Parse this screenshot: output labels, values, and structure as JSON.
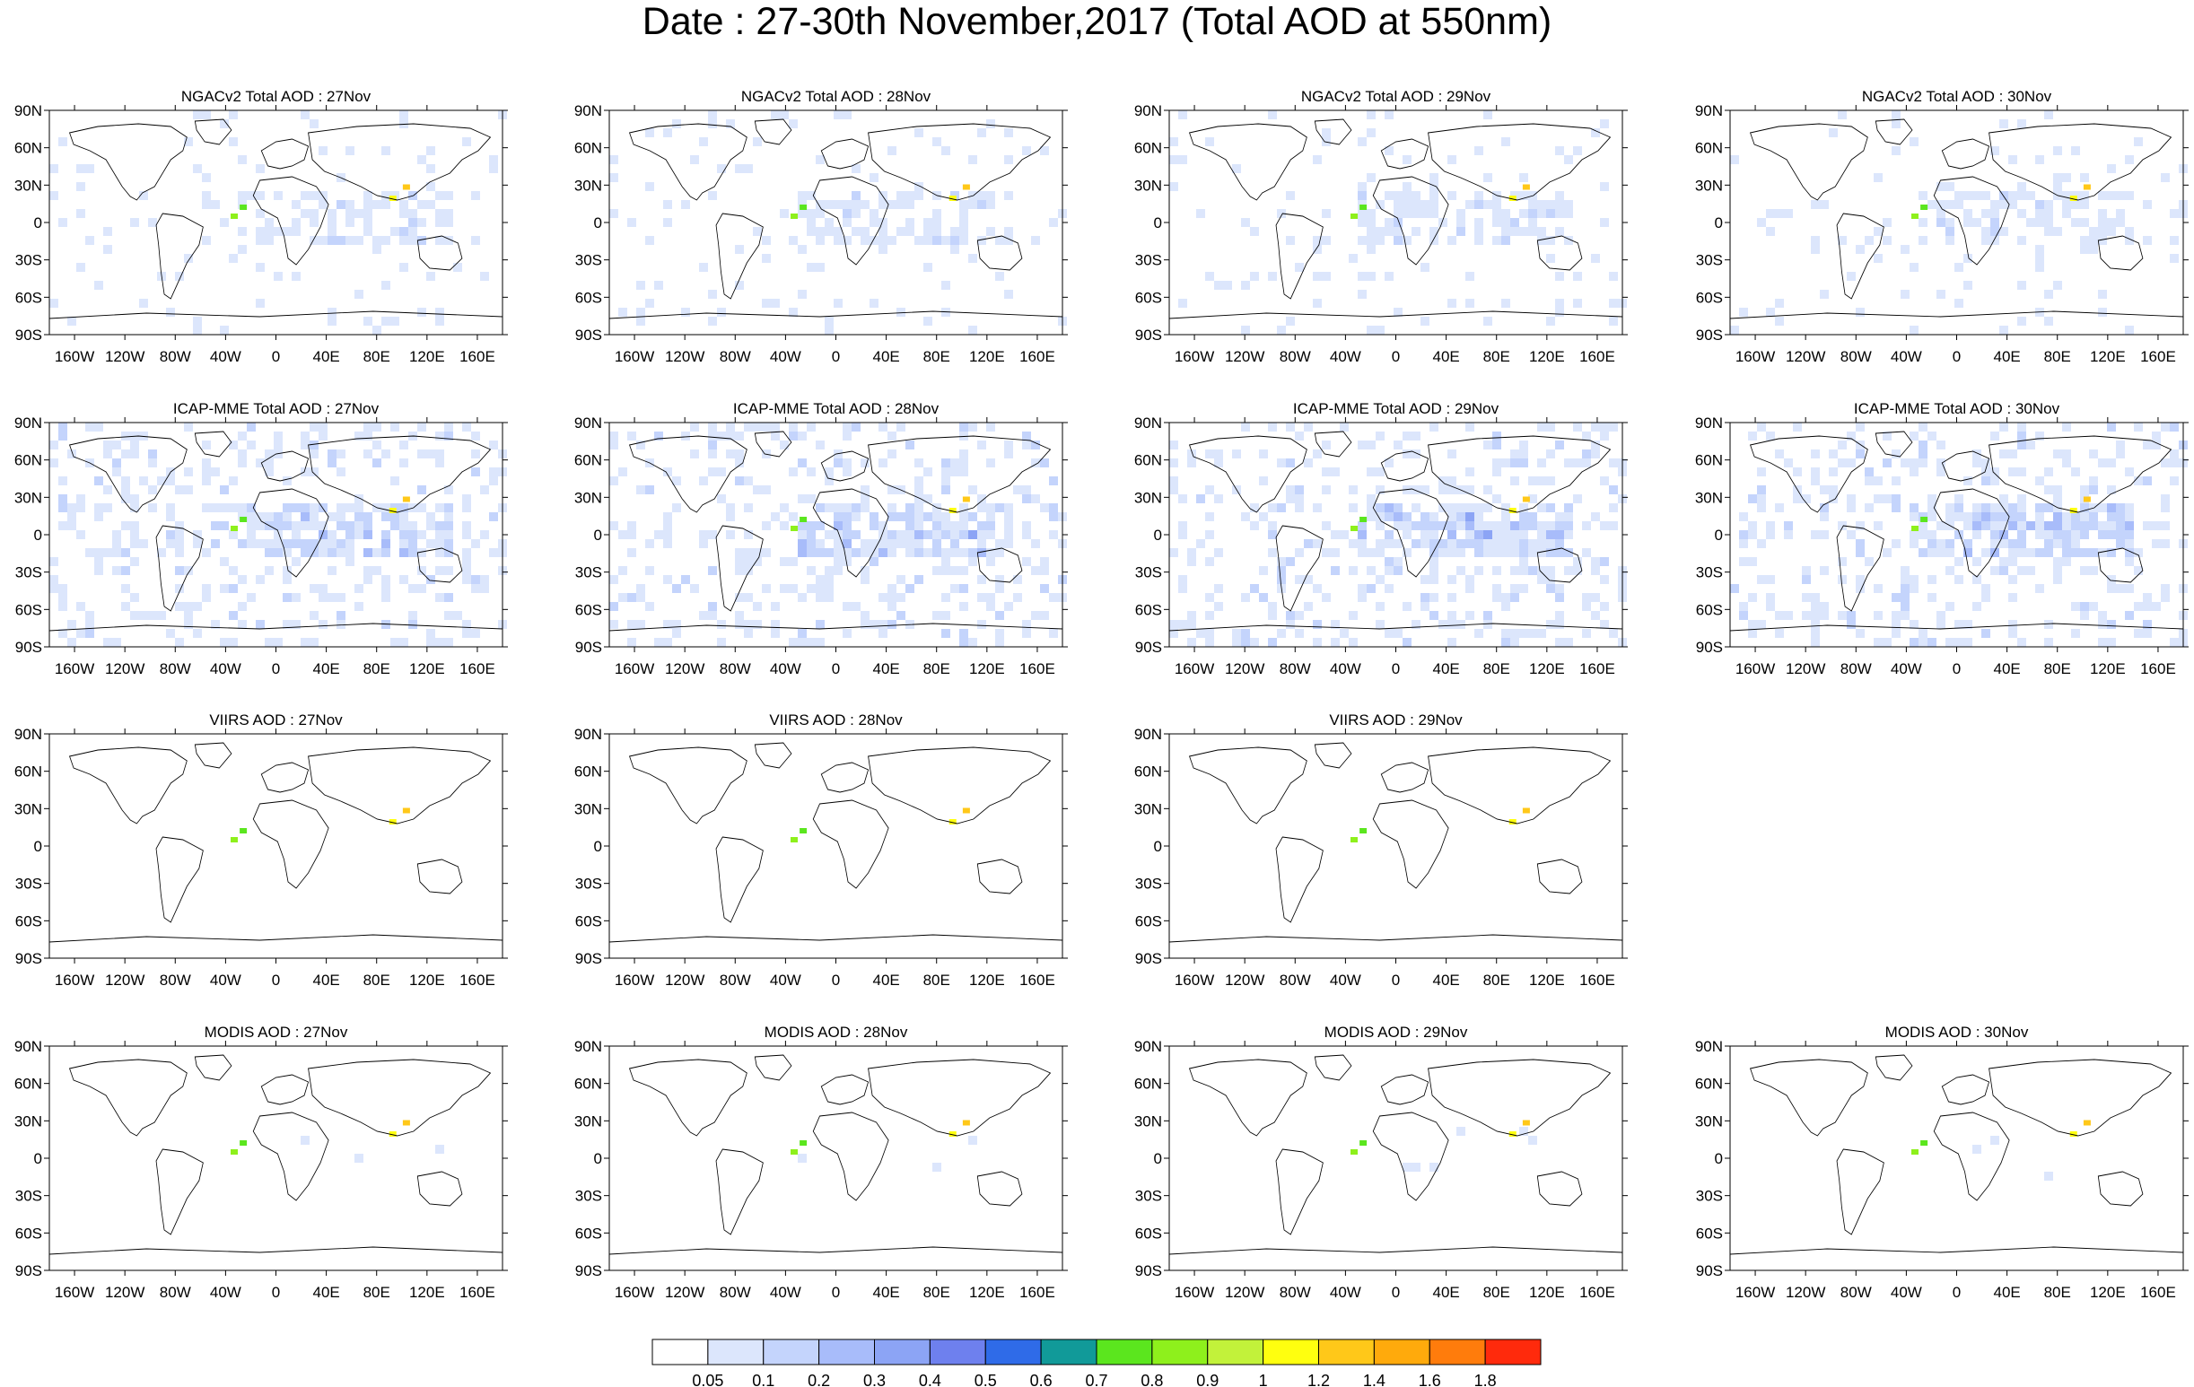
{
  "title": "Date : 27-30th November,2017 (Total AOD at 550nm)",
  "axes": {
    "lat_labels": [
      "90N",
      "60N",
      "30N",
      "0",
      "30S",
      "60S",
      "90S"
    ],
    "lon_labels": [
      "160W",
      "120W",
      "80W",
      "40W",
      "0",
      "40E",
      "80E",
      "120E",
      "160E"
    ]
  },
  "rows": [
    {
      "dataset": "NGACv2",
      "panels": [
        {
          "title": "NGACv2 Total AOD : 27Nov",
          "day": "27Nov"
        },
        {
          "title": "NGACv2 Total AOD : 28Nov",
          "day": "28Nov"
        },
        {
          "title": "NGACv2 Total AOD : 29Nov",
          "day": "29Nov"
        },
        {
          "title": "NGACv2 Total AOD : 30Nov",
          "day": "30Nov"
        }
      ]
    },
    {
      "dataset": "ICAP-MME",
      "panels": [
        {
          "title": "ICAP-MME Total AOD : 27Nov",
          "day": "27Nov"
        },
        {
          "title": "ICAP-MME Total AOD : 28Nov",
          "day": "28Nov"
        },
        {
          "title": "ICAP-MME Total AOD : 29Nov",
          "day": "29Nov"
        },
        {
          "title": "ICAP-MME Total AOD : 30Nov",
          "day": "30Nov"
        }
      ]
    },
    {
      "dataset": "VIIRS",
      "panels": [
        {
          "title": "VIIRS AOD : 27Nov",
          "day": "27Nov"
        },
        {
          "title": "VIIRS AOD : 28Nov",
          "day": "28Nov"
        },
        {
          "title": "VIIRS AOD : 29Nov",
          "day": "29Nov"
        },
        null
      ]
    },
    {
      "dataset": "MODIS",
      "panels": [
        {
          "title": "MODIS AOD : 27Nov",
          "day": "27Nov"
        },
        {
          "title": "MODIS AOD : 28Nov",
          "day": "28Nov"
        },
        {
          "title": "MODIS AOD : 29Nov",
          "day": "29Nov"
        },
        {
          "title": "MODIS AOD : 30Nov",
          "day": "30Nov"
        }
      ]
    }
  ],
  "colorbar": {
    "labels": [
      "0.05",
      "0.1",
      "0.2",
      "0.3",
      "0.4",
      "0.5",
      "0.6",
      "0.7",
      "0.8",
      "0.9",
      "1",
      "1.2",
      "1.4",
      "1.6",
      "1.8"
    ],
    "colors": [
      "#ffffff",
      "#dce6fc",
      "#c4d4fc",
      "#a8bcfa",
      "#8ca4f5",
      "#6e80ee",
      "#2f6be8",
      "#119a99",
      "#5be61e",
      "#8ef01c",
      "#c2f23a",
      "#ffff0f",
      "#ffc819",
      "#ffaa0c",
      "#ff7c0c",
      "#ff2a0c"
    ]
  }
}
